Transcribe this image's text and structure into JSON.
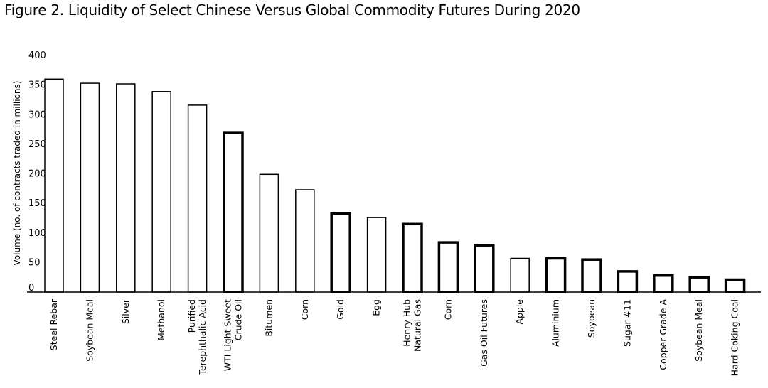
{
  "chart_data": {
    "type": "bar",
    "title": "Figure 2. Liquidity of Select Chinese Versus Global Commodity Futures During 2020",
    "ylabel": "Volume (no. of contracts traded in millions)",
    "xlabel": "",
    "ylim": [
      0,
      400
    ],
    "yticks": [
      0,
      50,
      100,
      150,
      200,
      250,
      300,
      350,
      400
    ],
    "grid": false,
    "categories": [
      "Steel Rebar",
      "Soybean Meal",
      "Silver",
      "Methanol",
      "Purified Terephthalic Acid",
      "WTI Light Sweet Crude Oil",
      "Bitumen",
      "Corn",
      "Gold",
      "Egg",
      "Henry Hub Natural Gas",
      "Corn",
      "Gas Oil Futures",
      "Apple",
      "Aluminium",
      "Soybean",
      "Sugar #11",
      "Copper Grade A",
      "Soybean Meal",
      "Hard Coking Coal"
    ],
    "category_lines": [
      [
        "Steel Rebar"
      ],
      [
        "Soybean Meal"
      ],
      [
        "Silver"
      ],
      [
        "Methanol"
      ],
      [
        "Purified",
        "Terephthalic Acid"
      ],
      [
        "WTI Light Sweet",
        "Crude Oil"
      ],
      [
        "Bitumen"
      ],
      [
        "Corn"
      ],
      [
        "Gold"
      ],
      [
        "Egg"
      ],
      [
        "Henry Hub",
        "Natural Gas"
      ],
      [
        "Corn"
      ],
      [
        "Gas Oil Futures"
      ],
      [
        "Apple"
      ],
      [
        "Aluminium"
      ],
      [
        "Soybean"
      ],
      [
        "Sugar #11"
      ],
      [
        "Copper Grade A"
      ],
      [
        "Soybean Meal"
      ],
      [
        "Hard Coking Coal"
      ]
    ],
    "values": [
      360,
      353,
      352,
      339,
      316,
      269,
      199,
      173,
      133,
      126,
      115,
      84,
      79,
      57,
      57,
      55,
      35,
      28,
      25,
      21
    ],
    "group": [
      "Chinese",
      "Chinese",
      "Chinese",
      "Chinese",
      "Chinese",
      "Global",
      "Chinese",
      "Chinese",
      "Global",
      "Chinese",
      "Global",
      "Global",
      "Global",
      "Chinese",
      "Global",
      "Global",
      "Global",
      "Global",
      "Global",
      "Global"
    ]
  }
}
